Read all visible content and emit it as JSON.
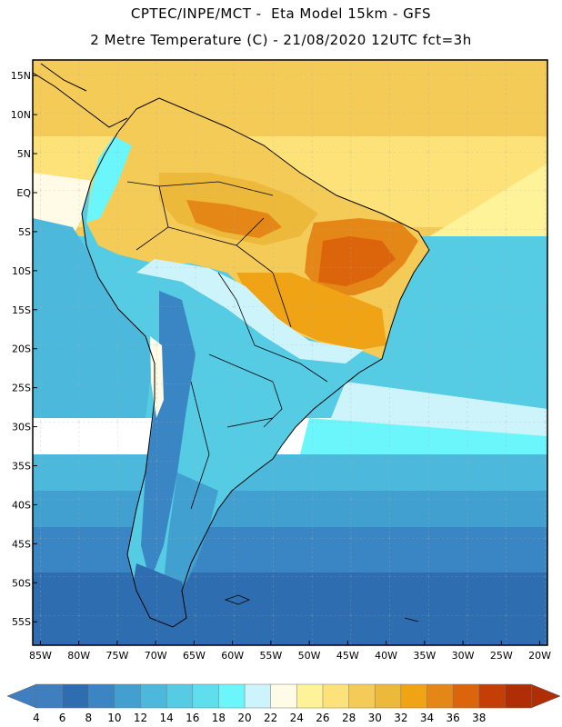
{
  "header": {
    "title_line1": "CPTEC/INPE/MCT -  Eta Model 15km - GFS",
    "title_line2": "2 Metre Temperature (C) - 21/08/2020 12UTC fct=3h"
  },
  "map": {
    "region": "South America",
    "lon_range": [
      -86,
      -19
    ],
    "lat_range": [
      17,
      -58
    ],
    "lat_labels": [
      {
        "value": 15,
        "text": "15N"
      },
      {
        "value": 10,
        "text": "10N"
      },
      {
        "value": 5,
        "text": "5N"
      },
      {
        "value": 0,
        "text": "EQ"
      },
      {
        "value": -5,
        "text": "5S"
      },
      {
        "value": -10,
        "text": "10S"
      },
      {
        "value": -15,
        "text": "15S"
      },
      {
        "value": -20,
        "text": "20S"
      },
      {
        "value": -25,
        "text": "25S"
      },
      {
        "value": -30,
        "text": "30S"
      },
      {
        "value": -35,
        "text": "35S"
      },
      {
        "value": -40,
        "text": "40S"
      },
      {
        "value": -45,
        "text": "45S"
      },
      {
        "value": -50,
        "text": "50S"
      },
      {
        "value": -55,
        "text": "55S"
      }
    ],
    "lon_labels": [
      {
        "value": -85,
        "text": "85W"
      },
      {
        "value": -80,
        "text": "80W"
      },
      {
        "value": -75,
        "text": "75W"
      },
      {
        "value": -70,
        "text": "70W"
      },
      {
        "value": -65,
        "text": "65W"
      },
      {
        "value": -60,
        "text": "60W"
      },
      {
        "value": -55,
        "text": "55W"
      },
      {
        "value": -50,
        "text": "50W"
      },
      {
        "value": -45,
        "text": "45W"
      },
      {
        "value": -40,
        "text": "40W"
      },
      {
        "value": -35,
        "text": "35W"
      },
      {
        "value": -30,
        "text": "30W"
      },
      {
        "value": -25,
        "text": "25W"
      },
      {
        "value": -20,
        "text": "20W"
      }
    ]
  },
  "colorbar": {
    "labels": [
      "4",
      "6",
      "8",
      "10",
      "12",
      "14",
      "16",
      "18",
      "20",
      "22",
      "24",
      "26",
      "28",
      "30",
      "32",
      "34",
      "36",
      "38"
    ],
    "colors": [
      "#3f7fbf",
      "#2d6db0",
      "#3a86c4",
      "#42a0d0",
      "#4cb8dc",
      "#55cbe4",
      "#5fdfee",
      "#6af6fb",
      "#cdf4fb",
      "#fffbe6",
      "#fff39a",
      "#fde27a",
      "#f5cb58",
      "#edb93a",
      "#f0a315",
      "#e58716",
      "#dc650c",
      "#c43e05",
      "#b02e05"
    ],
    "low_arrow_color": "#3f7fbf",
    "high_arrow_color": "#b02e05"
  }
}
